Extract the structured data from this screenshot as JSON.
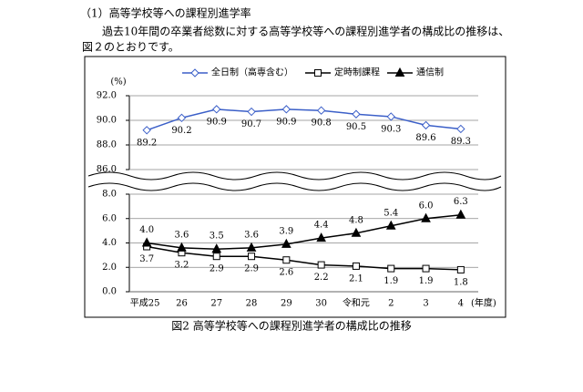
{
  "heading": "（1）高等学校等への課程別進学率",
  "paragraph": [
    "過去10年間の卒業者総数に対する高等学校等への課程別進学者の構成比の推移は、",
    "図２のとおりです。"
  ],
  "chart_data": {
    "type": "line",
    "y_unit": "(%)",
    "x_unit": "(年度)",
    "categories": [
      "平成25",
      "26",
      "27",
      "28",
      "29",
      "30",
      "令和元",
      "2",
      "3",
      "4"
    ],
    "ylim": [
      86,
      92
    ],
    "yticks": [
      {
        "value": 86,
        "label": "86.0"
      },
      {
        "value": 88,
        "label": "88.0"
      },
      {
        "value": 90,
        "label": "90.0"
      },
      {
        "value": 92,
        "label": "92.0"
      }
    ],
    "y2lim": [
      0,
      8
    ],
    "y2ticks": [
      {
        "value": 0,
        "label": "0.0"
      },
      {
        "value": 2,
        "label": "2.0"
      },
      {
        "value": 4,
        "label": "4.0"
      },
      {
        "value": 6,
        "label": "6.0"
      },
      {
        "value": 8,
        "label": "8.0"
      }
    ],
    "grid": true,
    "legend": "top",
    "series": [
      {
        "name": "全日制（高専含む）",
        "color": "#3b5fc8",
        "marker": "diamond",
        "label_side": "below",
        "values": [
          89.2,
          90.2,
          90.9,
          90.7,
          90.9,
          90.8,
          90.5,
          90.3,
          89.6,
          89.3
        ],
        "value_labels": [
          "89.2",
          "90.2",
          "90.9",
          "90.7",
          "90.9",
          "90.8",
          "90.5",
          "90.3",
          "89.6",
          "89.3"
        ]
      },
      {
        "name": "定時制課程",
        "color": "#000000",
        "marker": "square",
        "axis": "y2",
        "label_side": "below",
        "values": [
          3.7,
          3.2,
          2.9,
          2.9,
          2.6,
          2.2,
          2.1,
          1.9,
          1.9,
          1.8
        ],
        "value_labels": [
          "3.7",
          "3.2",
          "2.9",
          "2.9",
          "2.6",
          "2.2",
          "2.1",
          "1.9",
          "1.9",
          "1.8"
        ]
      },
      {
        "name": "通信制",
        "color": "#000000",
        "marker": "triangle",
        "axis": "y2",
        "label_side": "above",
        "values": [
          4.0,
          3.6,
          3.5,
          3.6,
          3.9,
          4.4,
          4.8,
          5.4,
          6.0,
          6.3
        ],
        "value_labels": [
          "4.0",
          "3.6",
          "3.5",
          "3.6",
          "3.9",
          "4.4",
          "4.8",
          "5.4",
          "6.0",
          "6.3"
        ]
      }
    ]
  },
  "caption": "図2 高等学校等への課程別進学者の構成比の推移"
}
